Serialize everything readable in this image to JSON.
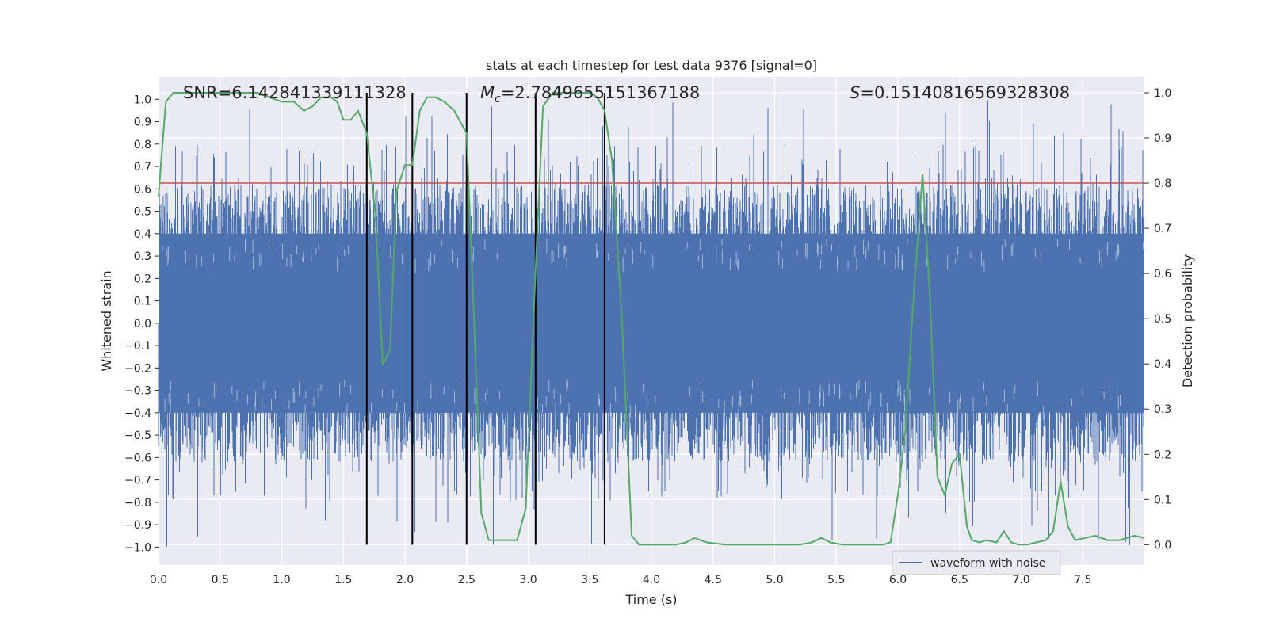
{
  "chart_data": {
    "type": "line",
    "title": "stats at each timestep for test data 9376 [signal=0]",
    "xlabel": "Time (s)",
    "ylabel_left": "Whitened strain",
    "ylabel_right": "Detection probability",
    "xlim": [
      0.0,
      8.0
    ],
    "ylim_left": [
      -1.08,
      1.1
    ],
    "ylim_right": [
      -0.045,
      1.035
    ],
    "x_ticks": [
      0.0,
      0.5,
      1.0,
      1.5,
      2.0,
      2.5,
      3.0,
      3.5,
      4.0,
      4.5,
      5.0,
      5.5,
      6.0,
      6.5,
      7.0,
      7.5
    ],
    "x_tick_labels": [
      "0.0",
      "0.5",
      "1.0",
      "1.5",
      "2.0",
      "2.5",
      "3.0",
      "3.5",
      "4.0",
      "4.5",
      "5.0",
      "5.5",
      "6.0",
      "6.5",
      "7.0",
      "7.5"
    ],
    "y_left_ticks": [
      1.0,
      0.9,
      0.8,
      0.7,
      0.6,
      0.5,
      0.4,
      0.3,
      0.2,
      0.1,
      0.0,
      -0.1,
      -0.2,
      -0.3,
      -0.4,
      -0.5,
      -0.6,
      -0.7,
      -0.8,
      -0.9,
      -1.0
    ],
    "y_left_tick_labels": [
      "1.0",
      "0.9",
      "0.8",
      "0.7",
      "0.6",
      "0.5",
      "0.4",
      "0.3",
      "0.2",
      "0.1",
      "0.0",
      "−0.1",
      "−0.2",
      "−0.3",
      "−0.4",
      "−0.5",
      "−0.6",
      "−0.7",
      "−0.8",
      "−0.9",
      "−1.0"
    ],
    "y_right_ticks": [
      1.0,
      0.9,
      0.8,
      0.7,
      0.6,
      0.5,
      0.4,
      0.3,
      0.2,
      0.1,
      0.0
    ],
    "y_right_tick_labels": [
      "1.0",
      "0.9",
      "0.8",
      "0.7",
      "0.6",
      "0.5",
      "0.4",
      "0.3",
      "0.2",
      "0.1",
      "0.0"
    ],
    "threshold": 0.8,
    "threshold_color": "#c44e52",
    "vertical_markers": [
      1.69,
      2.06,
      2.5,
      3.06,
      3.62
    ],
    "marker_color": "#000000",
    "stats": {
      "snr": "SNR=6.142841339111328",
      "mc_symbol": "M",
      "mc_sub": "c",
      "mc_value": "=2.7849655151367188",
      "s_symbol": "S",
      "s_value": "=0.15140816569328308"
    },
    "series": [
      {
        "name": "waveform with noise",
        "axis": "left",
        "color": "#4c72b0",
        "description": "noisy whitened strain, dense band roughly ±0.4 with spikes to ±1.0"
      },
      {
        "name": "detection probability",
        "axis": "right",
        "color": "#55a868",
        "x": [
          0.0,
          0.06,
          0.12,
          0.18,
          0.25,
          0.35,
          0.5,
          0.6,
          0.7,
          0.8,
          0.9,
          1.0,
          1.1,
          1.18,
          1.25,
          1.32,
          1.4,
          1.45,
          1.5,
          1.56,
          1.62,
          1.69,
          1.76,
          1.82,
          1.88,
          1.93,
          2.0,
          2.06,
          2.12,
          2.18,
          2.25,
          2.32,
          2.4,
          2.5,
          2.56,
          2.62,
          2.68,
          2.75,
          2.8,
          2.85,
          2.91,
          2.98,
          3.06,
          3.12,
          3.2,
          3.3,
          3.4,
          3.5,
          3.56,
          3.62,
          3.68,
          3.76,
          3.84,
          3.9,
          4.0,
          4.1,
          4.2,
          4.28,
          4.35,
          4.45,
          4.6,
          4.75,
          4.9,
          5.0,
          5.1,
          5.2,
          5.3,
          5.38,
          5.45,
          5.55,
          5.7,
          5.8,
          5.88,
          5.94,
          6.0,
          6.06,
          6.12,
          6.2,
          6.26,
          6.32,
          6.38,
          6.44,
          6.5,
          6.56,
          6.6,
          6.66,
          6.72,
          6.8,
          6.86,
          6.92,
          6.98,
          7.05,
          7.12,
          7.2,
          7.26,
          7.32,
          7.38,
          7.44,
          7.52,
          7.6,
          7.7,
          7.8,
          7.86,
          7.92,
          8.0
        ],
        "y": [
          0.77,
          0.98,
          1.0,
          1.0,
          1.0,
          1.0,
          1.0,
          1.0,
          1.0,
          1.0,
          0.99,
          0.98,
          0.98,
          0.96,
          0.97,
          0.99,
          0.99,
          0.98,
          0.94,
          0.94,
          0.96,
          0.91,
          0.73,
          0.4,
          0.43,
          0.78,
          0.84,
          0.84,
          0.96,
          0.99,
          0.99,
          0.98,
          0.96,
          0.91,
          0.5,
          0.07,
          0.01,
          0.01,
          0.01,
          0.01,
          0.01,
          0.08,
          0.61,
          0.97,
          1.0,
          1.0,
          1.0,
          1.0,
          0.99,
          0.96,
          0.85,
          0.5,
          0.02,
          0.0,
          0.0,
          0.0,
          0.0,
          0.005,
          0.015,
          0.005,
          0.0,
          0.0,
          0.0,
          0.0,
          0.0,
          0.0,
          0.005,
          0.015,
          0.005,
          0.0,
          0.0,
          0.0,
          0.0,
          0.005,
          0.11,
          0.25,
          0.52,
          0.82,
          0.55,
          0.15,
          0.11,
          0.18,
          0.2,
          0.04,
          0.01,
          0.005,
          0.01,
          0.005,
          0.03,
          0.005,
          0.0,
          0.0,
          0.005,
          0.01,
          0.03,
          0.14,
          0.04,
          0.01,
          0.015,
          0.02,
          0.01,
          0.01,
          0.015,
          0.02,
          0.015
        ]
      }
    ],
    "legend": {
      "entries": [
        "waveform with noise"
      ],
      "location": "lower-right"
    }
  }
}
